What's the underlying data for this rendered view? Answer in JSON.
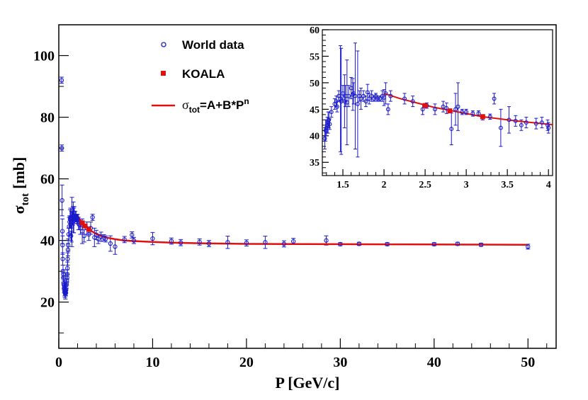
{
  "chart_data": [
    {
      "id": "main",
      "type": "scatter",
      "xlabel": "P [GeV/c]",
      "ylabel": "σ",
      "ylabel_sub": "tot",
      "ylabel_unit": "[mb]",
      "xlim": [
        0,
        53
      ],
      "ylim": [
        5,
        110
      ],
      "x_ticks": [
        0,
        10,
        20,
        30,
        40,
        50
      ],
      "x_tick_labels": [
        "0",
        "10",
        "20",
        "30",
        "40",
        "50"
      ],
      "y_ticks": [
        20,
        40,
        60,
        80,
        100
      ],
      "y_tick_labels": [
        "20",
        "40",
        "60",
        "80",
        "100"
      ],
      "grid": false,
      "legend": {
        "position": "top-center",
        "entries": [
          {
            "label": "World data",
            "marker": "open-circle",
            "color": "#1a1acc"
          },
          {
            "label": "KOALA",
            "marker": "filled-square",
            "color": "#e01010"
          },
          {
            "label": "σ",
            "sub": "tot",
            "after": "=A+B*P",
            "sup": "n",
            "marker": "line",
            "color": "#e01010"
          }
        ]
      },
      "series": [
        {
          "name": "World data",
          "color": "#1a1acc",
          "x": [
            0.3,
            0.32,
            0.35,
            0.38,
            0.4,
            0.42,
            0.45,
            0.48,
            0.5,
            0.52,
            0.55,
            0.58,
            0.6,
            0.62,
            0.65,
            0.68,
            0.7,
            0.72,
            0.75,
            0.78,
            0.8,
            0.82,
            0.85,
            0.88,
            0.9,
            0.92,
            0.95,
            0.98,
            1.0,
            1.05,
            1.1,
            1.15,
            1.2,
            1.25,
            1.3,
            1.35,
            1.4,
            1.45,
            1.5,
            1.55,
            1.6,
            1.65,
            1.7,
            1.75,
            1.8,
            1.85,
            1.9,
            1.95,
            2.0,
            2.1,
            2.2,
            2.3,
            2.5,
            2.7,
            3.0,
            3.2,
            3.4,
            3.6,
            3.8,
            4.0,
            4.2,
            4.5,
            4.8,
            5.0,
            5.5,
            6.0,
            7.0,
            7.8,
            8.0,
            10.0,
            12.0,
            13.0,
            15.0,
            16.0,
            18.0,
            20.0,
            22.0,
            24.0,
            25.0,
            28.5,
            30.0,
            32.0,
            35.0,
            40.0,
            42.5,
            45.0,
            50.0
          ],
          "y": [
            92.0,
            70.0,
            53.0,
            43.0,
            38.5,
            34.0,
            30.0,
            29.0,
            28.0,
            26.0,
            25.5,
            24.5,
            25.0,
            23.5,
            23.0,
            24.0,
            22.5,
            23.5,
            23.0,
            24.0,
            25.5,
            26.0,
            27.0,
            28.0,
            29.0,
            31.0,
            34.0,
            37.0,
            38.5,
            42.0,
            44.5,
            46.0,
            47.0,
            47.5,
            41.5,
            44.5,
            46.0,
            47.0,
            48.0,
            47.5,
            46.5,
            49.0,
            47.0,
            48.0,
            47.5,
            47.0,
            47.2,
            47.4,
            47.0,
            45.5,
            45.0,
            44.0,
            43.0,
            41.5,
            44.0,
            42.0,
            44.0,
            47.5,
            41.0,
            41.8,
            40.5,
            41.2,
            40.9,
            40.5,
            39.0,
            38.0,
            40.3,
            41.8,
            40.0,
            40.6,
            39.8,
            39.3,
            39.5,
            39.0,
            39.4,
            39.2,
            39.4,
            38.9,
            39.7,
            40.0,
            38.8,
            38.9,
            38.8,
            38.8,
            38.9,
            38.6,
            38.0
          ],
          "yerr": [
            1.0,
            1.0,
            5.0,
            4.0,
            3.0,
            2.0,
            2.0,
            1.5,
            1.5,
            1.5,
            1.5,
            1.5,
            1.5,
            1.5,
            1.5,
            1.5,
            1.5,
            1.0,
            1.0,
            1.0,
            1.0,
            1.5,
            1.5,
            1.5,
            1.5,
            2.0,
            2.0,
            2.0,
            2.0,
            2.0,
            3.0,
            2.0,
            3.0,
            3.0,
            1.5,
            5.0,
            8.0,
            2.0,
            3.0,
            5.0,
            4.0,
            2.0,
            1.5,
            1.5,
            1.0,
            1.0,
            1.0,
            1.0,
            1.5,
            2.0,
            1.5,
            2.0,
            4.0,
            2.0,
            2.0,
            2.0,
            2.0,
            1.0,
            3.0,
            1.5,
            1.5,
            1.5,
            1.0,
            1.0,
            2.5,
            2.5,
            1.0,
            1.0,
            1.0,
            2.0,
            1.0,
            1.0,
            1.0,
            1.0,
            2.0,
            1.0,
            2.0,
            1.0,
            1.0,
            1.5,
            0.5,
            0.5,
            0.5,
            0.5,
            0.5,
            0.5,
            0.8
          ]
        },
        {
          "name": "KOALA",
          "color": "#e01010",
          "x": [
            2.5,
            2.8,
            3.2
          ],
          "y": [
            45.7,
            44.7,
            43.6
          ]
        },
        {
          "name": "σtot=A+B*P^n",
          "type": "line",
          "color": "#e01010",
          "x": [
            2.0,
            2.2,
            2.5,
            2.8,
            3.0,
            3.2,
            3.5,
            4.0,
            4.5,
            5.0,
            6.0,
            7.0,
            8.0,
            10.0,
            12.0,
            15.0,
            20.0,
            25.0,
            30.0,
            35.0,
            40.0,
            45.0,
            50.0
          ],
          "y": [
            48.0,
            47.0,
            45.8,
            44.8,
            44.2,
            43.6,
            43.0,
            42.1,
            41.5,
            41.0,
            40.4,
            40.0,
            39.8,
            39.5,
            39.3,
            39.1,
            38.9,
            38.85,
            38.8,
            38.75,
            38.7,
            38.65,
            38.6
          ]
        }
      ]
    },
    {
      "id": "inset",
      "type": "scatter",
      "xlim": [
        1.25,
        4.05
      ],
      "ylim": [
        32.5,
        60
      ],
      "x_ticks": [
        1.5,
        2,
        2.5,
        3,
        3.5,
        4
      ],
      "x_tick_labels": [
        "1.5",
        "2",
        "2.5",
        "3",
        "3.5",
        "4"
      ],
      "y_ticks": [
        35,
        40,
        45,
        50,
        55,
        60
      ],
      "y_tick_labels": [
        "35",
        "40",
        "45",
        "50",
        "55",
        "60"
      ],
      "grid": false,
      "series": [
        {
          "name": "World data",
          "color": "#1a1acc",
          "x": [
            1.28,
            1.29,
            1.3,
            1.31,
            1.32,
            1.33,
            1.34,
            1.36,
            1.4,
            1.42,
            1.43,
            1.45,
            1.47,
            1.48,
            1.5,
            1.52,
            1.53,
            1.55,
            1.57,
            1.6,
            1.62,
            1.63,
            1.65,
            1.68,
            1.7,
            1.72,
            1.75,
            1.78,
            1.8,
            1.82,
            1.85,
            1.88,
            1.9,
            1.92,
            1.95,
            1.98,
            2.0,
            2.02,
            2.05,
            2.08,
            2.25,
            2.35,
            2.47,
            2.52,
            2.62,
            2.72,
            2.76,
            2.82,
            2.87,
            2.9,
            2.95,
            3.0,
            3.08,
            3.15,
            3.2,
            3.29,
            3.34,
            3.42,
            3.52,
            3.6,
            3.67,
            3.73,
            3.85,
            3.92,
            3.99,
            4.0
          ],
          "y": [
            39.5,
            41.0,
            41.5,
            42.0,
            42.5,
            43.0,
            42.2,
            44.5,
            46.0,
            46.5,
            45.5,
            47.5,
            47.0,
            46.5,
            48.0,
            46.5,
            47.5,
            46.3,
            47.5,
            49.0,
            47.8,
            48.0,
            47.5,
            46.0,
            47.5,
            47.0,
            47.5,
            46.5,
            48.2,
            47.0,
            47.5,
            47.0,
            47.5,
            47.0,
            47.0,
            47.5,
            47.2,
            48.0,
            45.0,
            47.5,
            47.0,
            46.5,
            45.0,
            45.7,
            45.0,
            45.5,
            45.2,
            41.3,
            45.0,
            45.5,
            44.5,
            44.5,
            44.2,
            44.2,
            43.5,
            43.6,
            47.0,
            41.5,
            43.0,
            42.8,
            42.0,
            42.5,
            42.3,
            42.5,
            42.0,
            41.5
          ],
          "yerr": [
            2.0,
            2.0,
            1.5,
            1.5,
            2.0,
            1.5,
            1.0,
            1.0,
            1.0,
            1.0,
            1.0,
            1.0,
            10.0,
            10.0,
            1.5,
            5.0,
            2.0,
            8.0,
            2.0,
            2.0,
            3.0,
            2.0,
            10.0,
            10.0,
            1.0,
            2.0,
            1.0,
            1.0,
            1.5,
            1.0,
            1.0,
            0.5,
            0.5,
            0.5,
            0.5,
            1.0,
            1.5,
            2.0,
            1.0,
            1.0,
            1.0,
            1.0,
            1.0,
            0.5,
            1.0,
            1.0,
            1.0,
            3.0,
            3.0,
            4.5,
            0.5,
            0.5,
            0.5,
            0.5,
            0.5,
            0.5,
            1.0,
            3.5,
            2.5,
            1.0,
            1.0,
            1.0,
            1.0,
            1.0,
            1.0,
            1.0
          ]
        },
        {
          "name": "KOALA",
          "color": "#e01010",
          "x": [
            2.5,
            2.8,
            3.2
          ],
          "y": [
            45.7,
            44.7,
            43.6
          ]
        },
        {
          "name": "σtot=A+B*P^n",
          "type": "line",
          "color": "#e01010",
          "x": [
            2.0,
            2.2,
            2.4,
            2.6,
            2.8,
            3.0,
            3.2,
            3.4,
            3.6,
            3.8,
            4.05
          ],
          "y": [
            48.0,
            47.0,
            46.2,
            45.4,
            44.8,
            44.2,
            43.6,
            43.2,
            42.8,
            42.5,
            42.1
          ]
        }
      ]
    }
  ]
}
